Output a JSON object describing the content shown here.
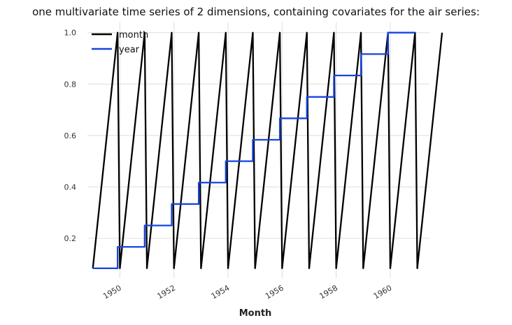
{
  "chart_data": {
    "type": "line",
    "title": "one multivariate time series of 2 dimensions, containing covariates for the air series:",
    "xlabel": "Month",
    "ylabel": "",
    "xlim": [
      1948.8,
      1961.45
    ],
    "ylim": [
      0.045,
      1.04
    ],
    "xticks": [
      "1950",
      "1952",
      "1954",
      "1956",
      "1958",
      "1960"
    ],
    "xtick_values": [
      1950,
      1952,
      1954,
      1956,
      1958,
      1960
    ],
    "yticks": [
      "0.2",
      "0.4",
      "0.6",
      "0.8",
      "1.0"
    ],
    "ytick_values": [
      0.2,
      0.4,
      0.6,
      0.8,
      1.0
    ],
    "grid": true,
    "legend_position": "top-left",
    "x_start": 1949.0,
    "x_step": 0.083333,
    "series": [
      {
        "name": "month",
        "color": "#000000",
        "values": [
          0.0833,
          0.1667,
          0.25,
          0.3333,
          0.4167,
          0.5,
          0.5833,
          0.6667,
          0.75,
          0.8333,
          0.9167,
          1.0,
          0.0833,
          0.1667,
          0.25,
          0.3333,
          0.4167,
          0.5,
          0.5833,
          0.6667,
          0.75,
          0.8333,
          0.9167,
          1.0,
          0.0833,
          0.1667,
          0.25,
          0.3333,
          0.4167,
          0.5,
          0.5833,
          0.6667,
          0.75,
          0.8333,
          0.9167,
          1.0,
          0.0833,
          0.1667,
          0.25,
          0.3333,
          0.4167,
          0.5,
          0.5833,
          0.6667,
          0.75,
          0.8333,
          0.9167,
          1.0,
          0.0833,
          0.1667,
          0.25,
          0.3333,
          0.4167,
          0.5,
          0.5833,
          0.6667,
          0.75,
          0.8333,
          0.9167,
          1.0,
          0.0833,
          0.1667,
          0.25,
          0.3333,
          0.4167,
          0.5,
          0.5833,
          0.6667,
          0.75,
          0.8333,
          0.9167,
          1.0,
          0.0833,
          0.1667,
          0.25,
          0.3333,
          0.4167,
          0.5,
          0.5833,
          0.6667,
          0.75,
          0.8333,
          0.9167,
          1.0,
          0.0833,
          0.1667,
          0.25,
          0.3333,
          0.4167,
          0.5,
          0.5833,
          0.6667,
          0.75,
          0.8333,
          0.9167,
          1.0,
          0.0833,
          0.1667,
          0.25,
          0.3333,
          0.4167,
          0.5,
          0.5833,
          0.6667,
          0.75,
          0.8333,
          0.9167,
          1.0,
          0.0833,
          0.1667,
          0.25,
          0.3333,
          0.4167,
          0.5,
          0.5833,
          0.6667,
          0.75,
          0.8333,
          0.9167,
          1.0,
          0.0833,
          0.1667,
          0.25,
          0.3333,
          0.4167,
          0.5,
          0.5833,
          0.6667,
          0.75,
          0.8333,
          0.9167,
          1.0,
          0.0833,
          0.1667,
          0.25,
          0.3333,
          0.4167,
          0.5,
          0.5833,
          0.6667,
          0.75,
          0.8333,
          0.9167,
          1.0,
          0.0833,
          0.1667,
          0.25,
          0.3333,
          0.4167,
          0.5,
          0.5833,
          0.6667,
          0.75,
          0.8333,
          0.9167,
          1.0
        ]
      },
      {
        "name": "year",
        "color": "#1545e0",
        "values": [
          0.0833,
          0.0833,
          0.0833,
          0.0833,
          0.0833,
          0.0833,
          0.0833,
          0.0833,
          0.0833,
          0.0833,
          0.0833,
          0.0833,
          0.1667,
          0.1667,
          0.1667,
          0.1667,
          0.1667,
          0.1667,
          0.1667,
          0.1667,
          0.1667,
          0.1667,
          0.1667,
          0.1667,
          0.25,
          0.25,
          0.25,
          0.25,
          0.25,
          0.25,
          0.25,
          0.25,
          0.25,
          0.25,
          0.25,
          0.25,
          0.3333,
          0.3333,
          0.3333,
          0.3333,
          0.3333,
          0.3333,
          0.3333,
          0.3333,
          0.3333,
          0.3333,
          0.3333,
          0.3333,
          0.4167,
          0.4167,
          0.4167,
          0.4167,
          0.4167,
          0.4167,
          0.4167,
          0.4167,
          0.4167,
          0.4167,
          0.4167,
          0.4167,
          0.5,
          0.5,
          0.5,
          0.5,
          0.5,
          0.5,
          0.5,
          0.5,
          0.5,
          0.5,
          0.5,
          0.5,
          0.5833,
          0.5833,
          0.5833,
          0.5833,
          0.5833,
          0.5833,
          0.5833,
          0.5833,
          0.5833,
          0.5833,
          0.5833,
          0.5833,
          0.6667,
          0.6667,
          0.6667,
          0.6667,
          0.6667,
          0.6667,
          0.6667,
          0.6667,
          0.6667,
          0.6667,
          0.6667,
          0.6667,
          0.75,
          0.75,
          0.75,
          0.75,
          0.75,
          0.75,
          0.75,
          0.75,
          0.75,
          0.75,
          0.75,
          0.75,
          0.8333,
          0.8333,
          0.8333,
          0.8333,
          0.8333,
          0.8333,
          0.8333,
          0.8333,
          0.8333,
          0.8333,
          0.8333,
          0.8333,
          0.9167,
          0.9167,
          0.9167,
          0.9167,
          0.9167,
          0.9167,
          0.9167,
          0.9167,
          0.9167,
          0.9167,
          0.9167,
          0.9167,
          1.0,
          1.0,
          1.0,
          1.0,
          1.0,
          1.0,
          1.0,
          1.0,
          1.0,
          1.0,
          1.0,
          1.0
        ]
      }
    ]
  }
}
